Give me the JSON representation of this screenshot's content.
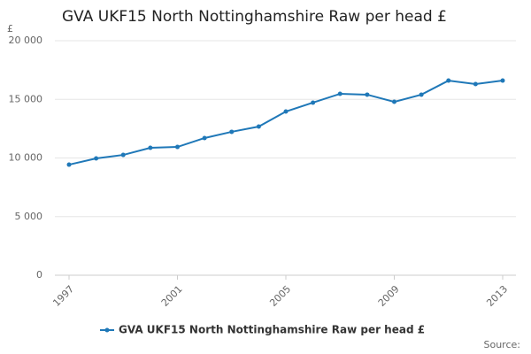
{
  "chart_data": {
    "type": "line",
    "title": "GVA UKF15 North Nottinghamshire Raw per head £",
    "y_unit": "£",
    "source": "Source:",
    "x": [
      1997,
      1998,
      1999,
      2000,
      2001,
      2002,
      2003,
      2004,
      2005,
      2006,
      2007,
      2008,
      2009,
      2010,
      2011,
      2012,
      2013
    ],
    "series": [
      {
        "name": "GVA UKF15 North Nottinghamshire Raw per head £",
        "color": "#1f78b8",
        "values": [
          9430,
          9960,
          10260,
          10870,
          10940,
          11700,
          12230,
          12680,
          13960,
          14720,
          15470,
          15400,
          14790,
          15400,
          16600,
          16300,
          16600
        ]
      }
    ],
    "xlim": [
      1997,
      2013
    ],
    "xticks": [
      1997,
      2001,
      2005,
      2009,
      2013
    ],
    "ylim": [
      0,
      20000
    ],
    "yticks": [
      0,
      {
        "value": 5000,
        "label": "5 000"
      },
      {
        "value": 10000,
        "label": "10 000"
      },
      {
        "value": 15000,
        "label": "15 000"
      },
      {
        "value": 20000,
        "label": "20 000"
      }
    ],
    "grid": true,
    "legend": "bottom"
  }
}
